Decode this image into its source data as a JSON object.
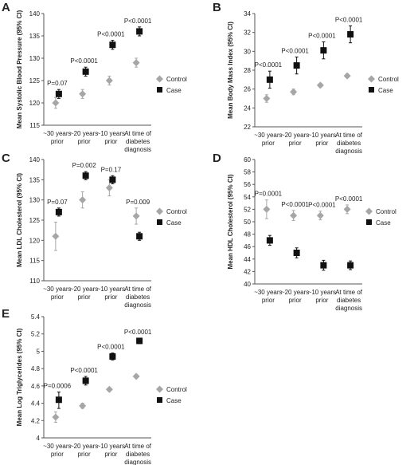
{
  "chart_data": [
    {
      "panel": "A",
      "type": "scatter",
      "categories": [
        "~30 years prior",
        "~20 years prior",
        "~10 years prior",
        "At time of diabetes diagnosis"
      ],
      "ylabel": "Mean Systolic Blood Pressure (95% CI)",
      "ylim": [
        115,
        140
      ],
      "yticks": [
        115,
        120,
        125,
        130,
        135,
        140
      ],
      "series": [
        {
          "name": "Control",
          "values": [
            120,
            122,
            125,
            129
          ],
          "ci_low": [
            118.8,
            121,
            124,
            128
          ],
          "ci_high": [
            121.2,
            123,
            126,
            130
          ]
        },
        {
          "name": "Case",
          "values": [
            122,
            127,
            133,
            136
          ],
          "ci_low": [
            121,
            126,
            132,
            135
          ],
          "ci_high": [
            123,
            128,
            134,
            137
          ]
        }
      ],
      "annotations": [
        "P=0.07",
        "P<0.0001",
        "P<0.0001",
        "P<0.0001"
      ],
      "legend": "right"
    },
    {
      "panel": "B",
      "type": "scatter",
      "categories": [
        "~30 years prior",
        "~20 years prior",
        "~10 years prior",
        "At time of diabetes diagnosis"
      ],
      "ylabel": "Mean Body Mass Index (95% CI)",
      "ylim": [
        22,
        34
      ],
      "yticks": [
        22,
        24,
        26,
        28,
        30,
        32,
        34
      ],
      "series": [
        {
          "name": "Control",
          "values": [
            25,
            25.7,
            26.4,
            27.4
          ],
          "ci_low": [
            24.6,
            25.4,
            26.2,
            27.2
          ],
          "ci_high": [
            25.4,
            26,
            26.6,
            27.6
          ]
        },
        {
          "name": "Case",
          "values": [
            27,
            28.5,
            30.1,
            31.8
          ],
          "ci_low": [
            26.1,
            27.6,
            29.2,
            30.9
          ],
          "ci_high": [
            27.9,
            29.4,
            31,
            32.7
          ]
        }
      ],
      "annotations": [
        "P<0.0001",
        "P<0.0001",
        "P<0.0001",
        "P<0.0001"
      ],
      "legend": "right"
    },
    {
      "panel": "C",
      "type": "scatter",
      "categories": [
        "~30 years prior",
        "~20 years prior",
        "~10 years prior",
        "At time of diabetes diagnosis"
      ],
      "ylabel": "Mean LDL Cholesterol (95% CI)",
      "ylim": [
        110,
        140
      ],
      "yticks": [
        110,
        115,
        120,
        125,
        130,
        135,
        140
      ],
      "series": [
        {
          "name": "Control",
          "values": [
            121,
            130,
            133,
            126
          ],
          "ci_low": [
            117.5,
            128,
            131,
            124
          ],
          "ci_high": [
            124.5,
            132,
            135,
            128
          ]
        },
        {
          "name": "Case",
          "values": [
            127,
            136,
            135,
            121
          ],
          "ci_low": [
            126,
            135,
            134,
            120
          ],
          "ci_high": [
            128,
            137,
            136,
            122
          ]
        }
      ],
      "annotations": [
        "P=0.07",
        "P=0.002",
        "P=0.17",
        "P=0.009"
      ],
      "legend": "right"
    },
    {
      "panel": "D",
      "type": "scatter",
      "categories": [
        "~30 years prior",
        "~20 years prior",
        "~10 years prior",
        "At time of diabetes diagnosis"
      ],
      "ylabel": "Mean HDL Cholesterol (95% CI)",
      "ylim": [
        40,
        60
      ],
      "yticks": [
        40,
        42,
        44,
        46,
        48,
        50,
        52,
        54,
        56,
        58,
        60
      ],
      "series": [
        {
          "name": "Control",
          "values": [
            52,
            51,
            51,
            52
          ],
          "ci_low": [
            50.5,
            50.2,
            50.3,
            51.3
          ],
          "ci_high": [
            53.5,
            51.8,
            51.7,
            52.7
          ]
        },
        {
          "name": "Case",
          "values": [
            47,
            45,
            43,
            43
          ],
          "ci_low": [
            46.2,
            44.2,
            42.2,
            42.3
          ],
          "ci_high": [
            47.8,
            45.8,
            43.8,
            43.7
          ]
        }
      ],
      "annotations": [
        "P=0.0001",
        "P<0.0001",
        "P<0.0001",
        "P<0.0001"
      ],
      "legend": "right"
    },
    {
      "panel": "E",
      "type": "scatter",
      "categories": [
        "~30 years prior",
        "~20 years prior",
        "~10 years prior",
        "At time of diabetes diagnosis"
      ],
      "ylabel": "Mean Log Triglycerides (95% CI)",
      "ylim": [
        4,
        5.4
      ],
      "yticks": [
        "4",
        "4.2",
        "4.4",
        "4.6",
        "4.8",
        "5",
        "5.2",
        "5.4"
      ],
      "series": [
        {
          "name": "Control",
          "values": [
            4.24,
            4.37,
            4.56,
            4.71
          ],
          "ci_low": [
            4.18,
            4.34,
            4.54,
            4.69
          ],
          "ci_high": [
            4.3,
            4.4,
            4.58,
            4.73
          ]
        },
        {
          "name": "Case",
          "values": [
            4.44,
            4.66,
            4.94,
            5.12
          ],
          "ci_low": [
            4.34,
            4.61,
            4.9,
            5.09
          ],
          "ci_high": [
            4.53,
            4.71,
            4.98,
            5.15
          ]
        }
      ],
      "annotations": [
        "P=0.0006",
        "P<0.0001",
        "P<0.0001",
        "P<0.0001"
      ],
      "legend": "right"
    }
  ],
  "colors": {
    "control": "#a6a6a6",
    "case": "#111111",
    "axis": "#555555",
    "text": "#222222"
  },
  "xticks": [
    [
      "~30 years",
      "prior"
    ],
    [
      "~20 years",
      "prior"
    ],
    [
      "~10 years",
      "prior"
    ],
    [
      "At time of",
      "diabetes",
      "diagnosis"
    ]
  ]
}
